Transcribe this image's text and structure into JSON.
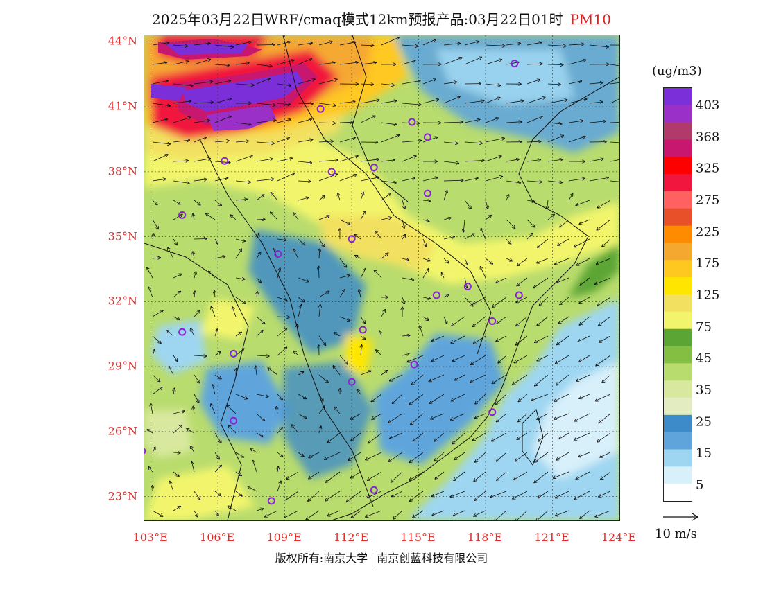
{
  "title": {
    "text": "2025年03月22日WRF/cmaq模式12km预报产品:03月22日01时",
    "pollutant": "PM10"
  },
  "map": {
    "lat_labels": [
      "44°N",
      "41°N",
      "38°N",
      "35°N",
      "32°N",
      "29°N",
      "26°N",
      "23°N"
    ],
    "lon_labels": [
      "103°E",
      "106°E",
      "109°E",
      "112°E",
      "115°E",
      "118°E",
      "121°E",
      "124°E"
    ],
    "lat_values": [
      44,
      41,
      38,
      35,
      32,
      29,
      26,
      23
    ],
    "lon_values": [
      103,
      106,
      109,
      112,
      115,
      118,
      121,
      124
    ],
    "extent": {
      "lon_min": 102.7,
      "lon_max": 124,
      "lat_min": 21.9,
      "lat_max": 44.3
    },
    "stations": [
      [
        119.3,
        43.0
      ],
      [
        110.6,
        40.9
      ],
      [
        114.7,
        40.3
      ],
      [
        115.4,
        39.6
      ],
      [
        106.3,
        38.5
      ],
      [
        111.1,
        38.0
      ],
      [
        113.0,
        38.2
      ],
      [
        115.4,
        37.0
      ],
      [
        104.4,
        36.0
      ],
      [
        112.0,
        34.9
      ],
      [
        108.7,
        34.2
      ],
      [
        115.8,
        32.3
      ],
      [
        117.2,
        32.7
      ],
      [
        119.5,
        32.3
      ],
      [
        118.3,
        31.1
      ],
      [
        104.4,
        30.6
      ],
      [
        106.7,
        29.6
      ],
      [
        112.5,
        30.7
      ],
      [
        114.8,
        29.1
      ],
      [
        112.0,
        28.3
      ],
      [
        106.7,
        26.5
      ],
      [
        118.3,
        26.9
      ],
      [
        102.6,
        25.1
      ],
      [
        108.4,
        22.8
      ],
      [
        113.0,
        23.3
      ]
    ]
  },
  "colorbar": {
    "unit": "(ug/m3)",
    "labels": [
      "403",
      "368",
      "325",
      "275",
      "225",
      "175",
      "125",
      "75",
      "45",
      "35",
      "25",
      "15",
      "5"
    ],
    "colors": [
      "#7b2fd8",
      "#9b30c8",
      "#b03a6a",
      "#c8176e",
      "#ff0000",
      "#f0163e",
      "#ff6060",
      "#e8502a",
      "#ff8c00",
      "#f5a830",
      "#ffc820",
      "#ffe600",
      "#f2e060",
      "#f2f56c",
      "#5ba535",
      "#82bf42",
      "#b9dc6e",
      "#d8e89e",
      "#e2ecc0",
      "#3d8bc9",
      "#5fa5db",
      "#9ed6f1",
      "#d8f0fa",
      "#ffffff"
    ]
  },
  "wind_reference": {
    "label": "10 m/s"
  },
  "footer": {
    "left": "版权所有:南京大学",
    "right": "南京创蓝科技有限公司"
  }
}
